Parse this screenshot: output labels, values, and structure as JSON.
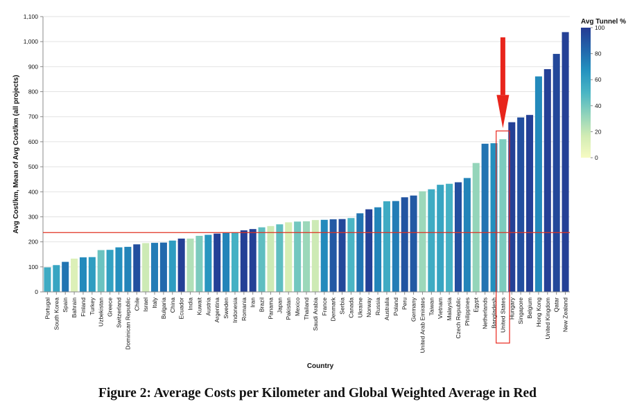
{
  "caption": "Figure 2: Average Costs per Kilometer and Global Weighted Average in Red",
  "chart_data": {
    "type": "bar",
    "xlabel": "Country",
    "ylabel": "Avg Cost/km, Mean of Avg Cost/km (all projects)",
    "ylim": [
      0,
      1100
    ],
    "yticks": [
      0,
      100,
      200,
      300,
      400,
      500,
      600,
      700,
      800,
      900,
      1000,
      1100
    ],
    "ytick_labels": [
      "0",
      "100",
      "200",
      "300",
      "400",
      "500",
      "600",
      "700",
      "800",
      "900",
      "1,000",
      "1,100"
    ],
    "grid": true,
    "reference_line": {
      "value": 237,
      "color": "#e03020"
    },
    "highlight": {
      "category": "United States",
      "color": "#e8251c"
    },
    "legend": {
      "title": "Avg Tunnel %",
      "position": "right",
      "range": [
        0,
        100
      ],
      "ticks": [
        0,
        20,
        40,
        60,
        80,
        100
      ],
      "colors": [
        "#f7fbc2",
        "#d2ecb4",
        "#8fd3bb",
        "#4ab5c4",
        "#2493c0",
        "#2165ab",
        "#243b93"
      ]
    },
    "categories": [
      "Portugal",
      "South Korea",
      "Spain",
      "Bahrain",
      "Finland",
      "Turkey",
      "Uzbekistan",
      "Greece",
      "Switzerland",
      "Dominican Republic",
      "Chile",
      "Israel",
      "Italy",
      "Bulgaria",
      "China",
      "Ecuador",
      "India",
      "Kuwait",
      "Austria",
      "Argentina",
      "Sweden",
      "Indonesia",
      "Romania",
      "Iran",
      "Brazil",
      "Panama",
      "Japan",
      "Pakistan",
      "Mexico",
      "Thailand",
      "Saudi Arabia",
      "France",
      "Denmark",
      "Serbia",
      "Canada",
      "Ukraine",
      "Norway",
      "Russia",
      "Australia",
      "Poland",
      "Peru",
      "Germany",
      "United Arab Emirates",
      "Taiwan",
      "Vietnam",
      "Malaysia",
      "Czech Republic",
      "Philippines",
      "Egypt",
      "Netherlands",
      "Bangladesh",
      "United States",
      "Hungary",
      "Singapore",
      "Belgium",
      "Hong Kong",
      "United Kingdom",
      "Qatar",
      "New Zealand"
    ],
    "values": [
      98,
      107,
      120,
      133,
      138,
      139,
      167,
      168,
      178,
      180,
      190,
      195,
      196,
      197,
      205,
      213,
      213,
      224,
      228,
      233,
      236,
      238,
      246,
      251,
      258,
      263,
      270,
      278,
      281,
      282,
      287,
      288,
      290,
      291,
      295,
      314,
      330,
      338,
      362,
      363,
      378,
      385,
      402,
      410,
      428,
      432,
      438,
      455,
      515,
      592,
      594,
      610,
      678,
      697,
      707,
      861,
      890,
      951,
      1038
    ],
    "tunnel_pct": [
      55,
      58,
      78,
      12,
      70,
      62,
      42,
      60,
      68,
      72,
      92,
      18,
      75,
      82,
      62,
      98,
      25,
      38,
      65,
      98,
      72,
      52,
      98,
      98,
      45,
      18,
      45,
      15,
      40,
      30,
      18,
      70,
      88,
      95,
      50,
      78,
      98,
      72,
      55,
      75,
      90,
      88,
      30,
      55,
      58,
      52,
      92,
      72,
      32,
      78,
      68,
      38,
      98,
      92,
      98,
      70,
      98,
      95,
      98
    ]
  }
}
